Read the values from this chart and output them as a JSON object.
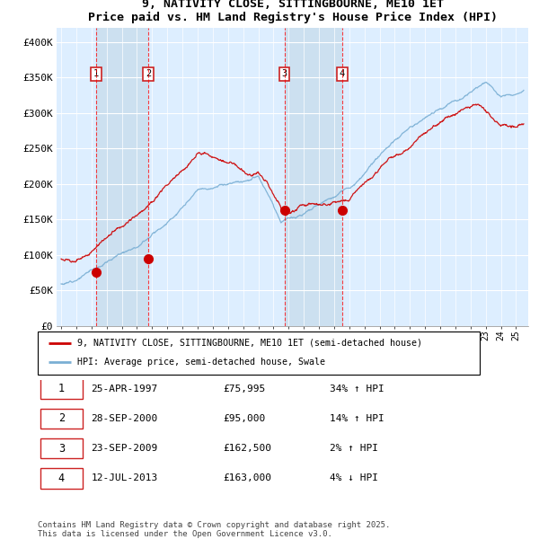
{
  "title": "9, NATIVITY CLOSE, SITTINGBOURNE, ME10 1ET",
  "subtitle": "Price paid vs. HM Land Registry's House Price Index (HPI)",
  "ylim": [
    0,
    420000
  ],
  "yticks": [
    0,
    50000,
    100000,
    150000,
    200000,
    250000,
    300000,
    350000,
    400000
  ],
  "ytick_labels": [
    "£0",
    "£50K",
    "£100K",
    "£150K",
    "£200K",
    "£250K",
    "£300K",
    "£350K",
    "£400K"
  ],
  "legend_line1": "9, NATIVITY CLOSE, SITTINGBOURNE, ME10 1ET (semi-detached house)",
  "legend_line2": "HPI: Average price, semi-detached house, Swale",
  "line_color_red": "#cc0000",
  "line_color_blue": "#7aafd4",
  "background_color": "#ddeeff",
  "shade_color": "#cce0f0",
  "grid_color": "#ffffff",
  "transactions": [
    {
      "label": "1",
      "date_num": 1997.32,
      "price": 75995,
      "date_str": "25-APR-1997"
    },
    {
      "label": "2",
      "date_num": 2000.75,
      "price": 95000,
      "date_str": "28-SEP-2000"
    },
    {
      "label": "3",
      "date_num": 2009.73,
      "price": 162500,
      "date_str": "23-SEP-2009"
    },
    {
      "label": "4",
      "date_num": 2013.54,
      "price": 163000,
      "date_str": "12-JUL-2013"
    }
  ],
  "footer": "Contains HM Land Registry data © Crown copyright and database right 2025.\nThis data is licensed under the Open Government Licence v3.0.",
  "table_rows": [
    [
      "1",
      "25-APR-1997",
      "£75,995",
      "34% ↑ HPI"
    ],
    [
      "2",
      "28-SEP-2000",
      "£95,000",
      "14% ↑ HPI"
    ],
    [
      "3",
      "23-SEP-2009",
      "£162,500",
      "2% ↑ HPI"
    ],
    [
      "4",
      "12-JUL-2013",
      "£163,000",
      "4% ↓ HPI"
    ]
  ]
}
